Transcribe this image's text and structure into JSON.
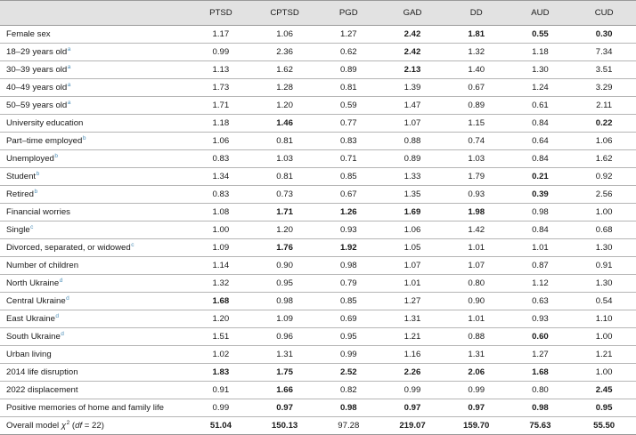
{
  "columns": [
    "",
    "PTSD",
    "CPTSD",
    "PGD",
    "GAD",
    "DD",
    "AUD",
    "CUD"
  ],
  "rows": [
    {
      "label": "Female sex",
      "sup": "",
      "values": [
        "1.17",
        "1.06",
        "1.27",
        "2.42",
        "1.81",
        "0.55",
        "0.30"
      ],
      "bold": [
        false,
        false,
        false,
        true,
        true,
        true,
        true
      ]
    },
    {
      "label": "18–29 years old",
      "sup": "a",
      "values": [
        "0.99",
        "2.36",
        "0.62",
        "2.42",
        "1.32",
        "1.18",
        "7.34"
      ],
      "bold": [
        false,
        false,
        false,
        true,
        false,
        false,
        false
      ]
    },
    {
      "label": "30–39 years old",
      "sup": "a",
      "values": [
        "1.13",
        "1.62",
        "0.89",
        "2.13",
        "1.40",
        "1.30",
        "3.51"
      ],
      "bold": [
        false,
        false,
        false,
        true,
        false,
        false,
        false
      ]
    },
    {
      "label": "40–49 years old",
      "sup": "a",
      "values": [
        "1.73",
        "1.28",
        "0.81",
        "1.39",
        "0.67",
        "1.24",
        "3.29"
      ],
      "bold": [
        false,
        false,
        false,
        false,
        false,
        false,
        false
      ]
    },
    {
      "label": "50–59 years old",
      "sup": "a",
      "values": [
        "1.71",
        "1.20",
        "0.59",
        "1.47",
        "0.89",
        "0.61",
        "2.11"
      ],
      "bold": [
        false,
        false,
        false,
        false,
        false,
        false,
        false
      ]
    },
    {
      "label": "University education",
      "sup": "",
      "values": [
        "1.18",
        "1.46",
        "0.77",
        "1.07",
        "1.15",
        "0.84",
        "0.22"
      ],
      "bold": [
        false,
        true,
        false,
        false,
        false,
        false,
        true
      ]
    },
    {
      "label": "Part–time employed",
      "sup": "b",
      "values": [
        "1.06",
        "0.81",
        "0.83",
        "0.88",
        "0.74",
        "0.64",
        "1.06"
      ],
      "bold": [
        false,
        false,
        false,
        false,
        false,
        false,
        false
      ]
    },
    {
      "label": "Unemployed",
      "sup": "b",
      "values": [
        "0.83",
        "1.03",
        "0.71",
        "0.89",
        "1.03",
        "0.84",
        "1.62"
      ],
      "bold": [
        false,
        false,
        false,
        false,
        false,
        false,
        false
      ]
    },
    {
      "label": "Student",
      "sup": "b",
      "values": [
        "1.34",
        "0.81",
        "0.85",
        "1.33",
        "1.79",
        "0.21",
        "0.92"
      ],
      "bold": [
        false,
        false,
        false,
        false,
        false,
        true,
        false
      ]
    },
    {
      "label": "Retired",
      "sup": "b",
      "values": [
        "0.83",
        "0.73",
        "0.67",
        "1.35",
        "0.93",
        "0.39",
        "2.56"
      ],
      "bold": [
        false,
        false,
        false,
        false,
        false,
        true,
        false
      ]
    },
    {
      "label": "Financial worries",
      "sup": "",
      "values": [
        "1.08",
        "1.71",
        "1.26",
        "1.69",
        "1.98",
        "0.98",
        "1.00"
      ],
      "bold": [
        false,
        true,
        true,
        true,
        true,
        false,
        false
      ]
    },
    {
      "label": "Single",
      "sup": "c",
      "values": [
        "1.00",
        "1.20",
        "0.93",
        "1.06",
        "1.42",
        "0.84",
        "0.68"
      ],
      "bold": [
        false,
        false,
        false,
        false,
        false,
        false,
        false
      ]
    },
    {
      "label": "Divorced, separated, or widowed",
      "sup": "c",
      "values": [
        "1.09",
        "1.76",
        "1.92",
        "1.05",
        "1.01",
        "1.01",
        "1.30"
      ],
      "bold": [
        false,
        true,
        true,
        false,
        false,
        false,
        false
      ]
    },
    {
      "label": "Number of children",
      "sup": "",
      "values": [
        "1.14",
        "0.90",
        "0.98",
        "1.07",
        "1.07",
        "0.87",
        "0.91"
      ],
      "bold": [
        false,
        false,
        false,
        false,
        false,
        false,
        false
      ]
    },
    {
      "label": "North Ukraine",
      "sup": "d",
      "values": [
        "1.32",
        "0.95",
        "0.79",
        "1.01",
        "0.80",
        "1.12",
        "1.30"
      ],
      "bold": [
        false,
        false,
        false,
        false,
        false,
        false,
        false
      ]
    },
    {
      "label": "Central Ukraine",
      "sup": "d",
      "values": [
        "1.68",
        "0.98",
        "0.85",
        "1.27",
        "0.90",
        "0.63",
        "0.54"
      ],
      "bold": [
        true,
        false,
        false,
        false,
        false,
        false,
        false
      ]
    },
    {
      "label": "East Ukraine",
      "sup": "d",
      "values": [
        "1.20",
        "1.09",
        "0.69",
        "1.31",
        "1.01",
        "0.93",
        "1.10"
      ],
      "bold": [
        false,
        false,
        false,
        false,
        false,
        false,
        false
      ]
    },
    {
      "label": "South Ukraine",
      "sup": "d",
      "values": [
        "1.51",
        "0.96",
        "0.95",
        "1.21",
        "0.88",
        "0.60",
        "1.00"
      ],
      "bold": [
        false,
        false,
        false,
        false,
        false,
        true,
        false
      ]
    },
    {
      "label": "Urban living",
      "sup": "",
      "values": [
        "1.02",
        "1.31",
        "0.99",
        "1.16",
        "1.31",
        "1.27",
        "1.21"
      ],
      "bold": [
        false,
        false,
        false,
        false,
        false,
        false,
        false
      ]
    },
    {
      "label": "2014 life disruption",
      "sup": "",
      "values": [
        "1.83",
        "1.75",
        "2.52",
        "2.26",
        "2.06",
        "1.68",
        "1.00"
      ],
      "bold": [
        true,
        true,
        true,
        true,
        true,
        true,
        false
      ]
    },
    {
      "label": "2022 displacement",
      "sup": "",
      "values": [
        "0.91",
        "1.66",
        "0.82",
        "0.99",
        "0.99",
        "0.80",
        "2.45"
      ],
      "bold": [
        false,
        true,
        false,
        false,
        false,
        false,
        true
      ]
    },
    {
      "label": "Positive memories of home and family life",
      "sup": "",
      "values": [
        "0.99",
        "0.97",
        "0.98",
        "0.97",
        "0.97",
        "0.98",
        "0.95"
      ],
      "bold": [
        false,
        true,
        true,
        true,
        true,
        true,
        true
      ]
    }
  ],
  "model_row": {
    "label_pre": "Overall model ",
    "label_chi": "χ",
    "label_sup": "2",
    "label_paren_open": " (",
    "label_df": "df",
    "label_df_val": " = 22)",
    "values": [
      "51.04",
      "150.13",
      "97.28",
      "219.07",
      "159.70",
      "75.63",
      "55.50"
    ],
    "bold": [
      true,
      true,
      false,
      true,
      true,
      true,
      true
    ]
  }
}
